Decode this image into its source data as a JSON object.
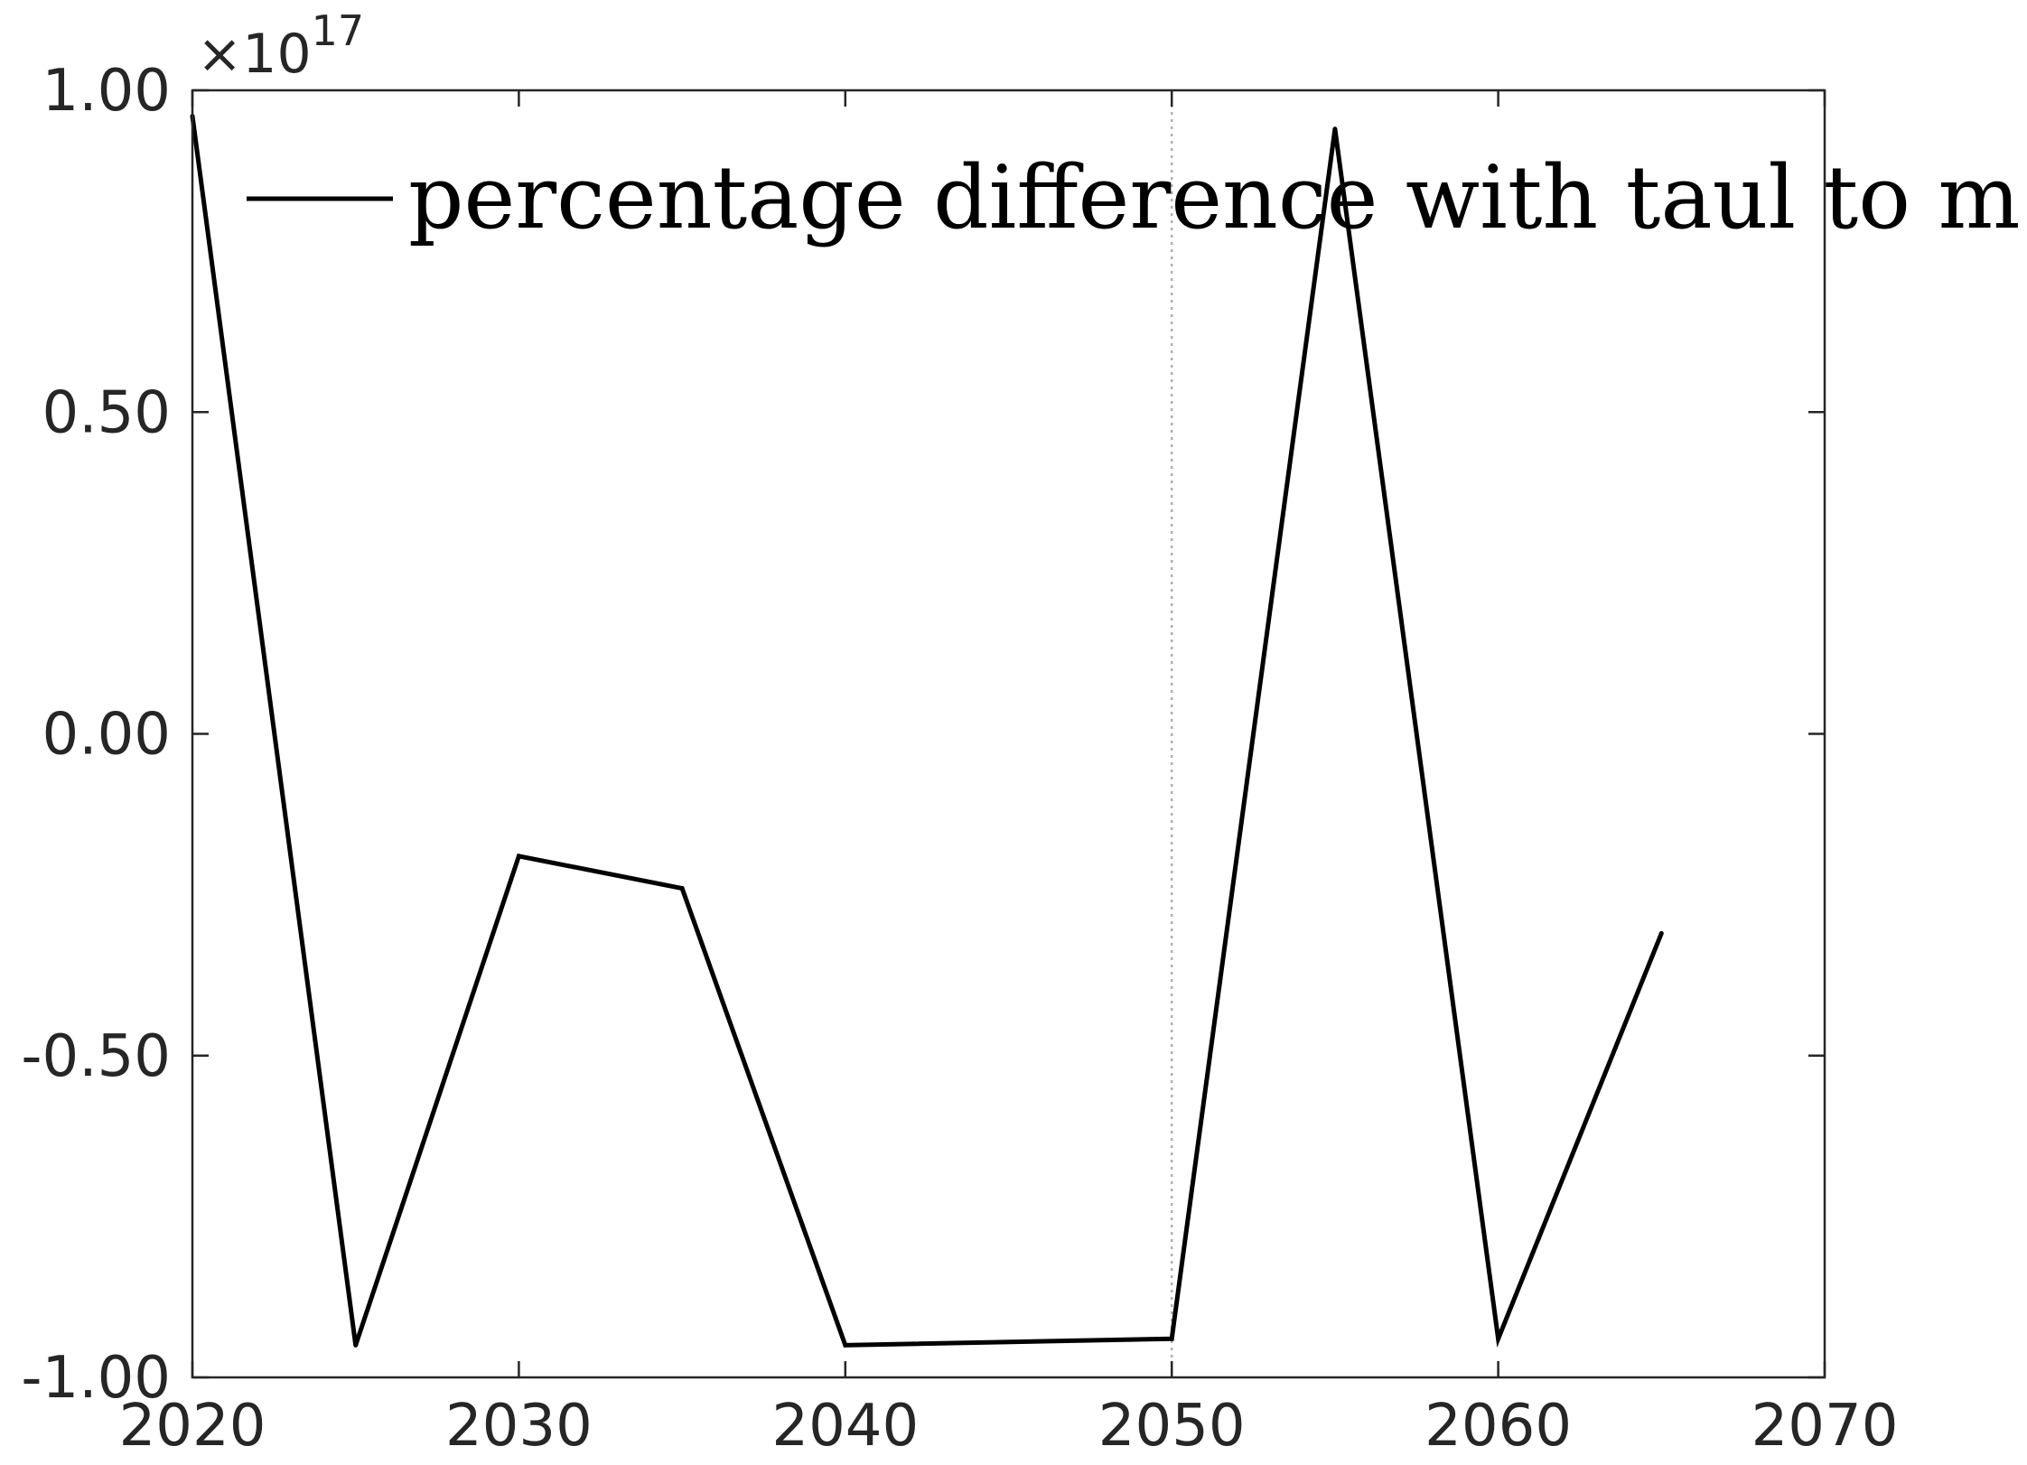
{
  "chart_data": {
    "type": "line",
    "title": "",
    "xlabel": "",
    "ylabel": "",
    "y_exponent_base": "10",
    "y_exponent_power": "17",
    "y_exponent_prefix": "×",
    "xlim": [
      2020,
      2070
    ],
    "ylim": [
      -1.0,
      1.0
    ],
    "x_ticks": [
      2020,
      2030,
      2040,
      2050,
      2060,
      2070
    ],
    "x_tick_labels": [
      "2020",
      "2030",
      "2040",
      "2050",
      "2060",
      "2070"
    ],
    "y_ticks": [
      1.0,
      0.5,
      0.0,
      -0.5,
      -1.0
    ],
    "y_tick_labels": [
      "1.00",
      "0.50",
      "0.00",
      "-0.50",
      "-1.00"
    ],
    "grid": false,
    "vertical_reference_line": {
      "x": 2050,
      "style": "dotted",
      "color": "#b0b0b0"
    },
    "legend": {
      "position": "top-left",
      "entries": [
        "percentage difference with taul to m"
      ]
    },
    "series": [
      {
        "name": "percentage difference with taul to m",
        "color": "#000000",
        "x": [
          2020,
          2025,
          2030,
          2035,
          2040,
          2050,
          2055,
          2060,
          2065
        ],
        "y": [
          0.96,
          -0.95,
          -0.19,
          -0.24,
          -0.95,
          -0.94,
          0.94,
          -0.94,
          -0.31
        ]
      }
    ]
  }
}
